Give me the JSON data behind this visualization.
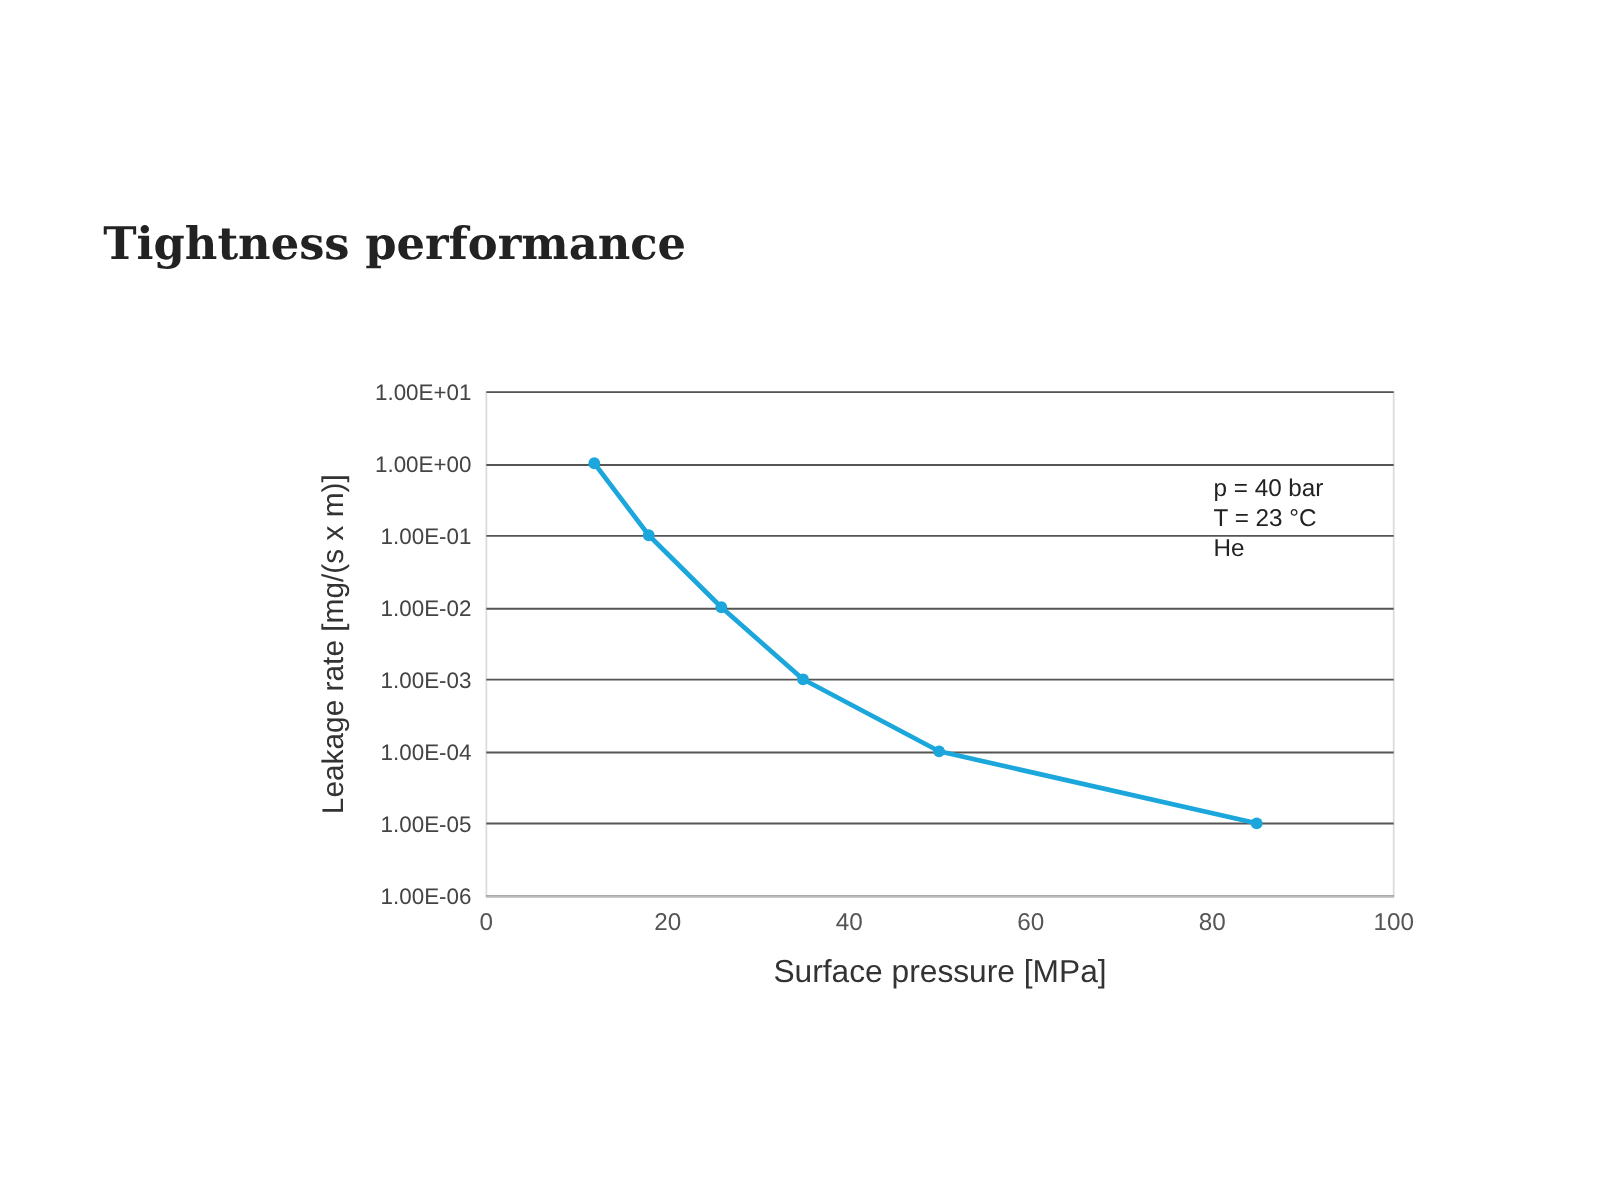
{
  "chart_data": {
    "type": "line",
    "title": "Tightness performance",
    "xlabel": "Surface pressure [MPa]",
    "ylabel": "Leakage rate  [mg/(s x m)]",
    "x": [
      12,
      18,
      26,
      35,
      50,
      85
    ],
    "series": [
      {
        "color": "#1ba6dc",
        "values": [
          1,
          0.1,
          0.01,
          0.001,
          0.0001,
          1e-05
        ]
      }
    ],
    "xlim": [
      0,
      100
    ],
    "xticks": [
      0,
      20,
      40,
      60,
      80,
      100
    ],
    "ylim": [
      1e-06,
      10
    ],
    "yticks": [
      {
        "value": 10,
        "label": "1.00E+01"
      },
      {
        "value": 1,
        "label": "1.00E+00"
      },
      {
        "value": 0.1,
        "label": "1.00E-01"
      },
      {
        "value": 0.01,
        "label": "1.00E-02"
      },
      {
        "value": 0.001,
        "label": "1.00E-03"
      },
      {
        "value": 0.0001,
        "label": "1.00E-04"
      },
      {
        "value": 1e-05,
        "label": "1.00E-05"
      },
      {
        "value": 1e-06,
        "label": "1.00E-06"
      }
    ],
    "log": "y",
    "grid": "y",
    "marker": "circle",
    "line_style": "solid",
    "legend": false,
    "annotations": [
      "p = 40 bar",
      "T = 23 °C",
      "He"
    ]
  }
}
